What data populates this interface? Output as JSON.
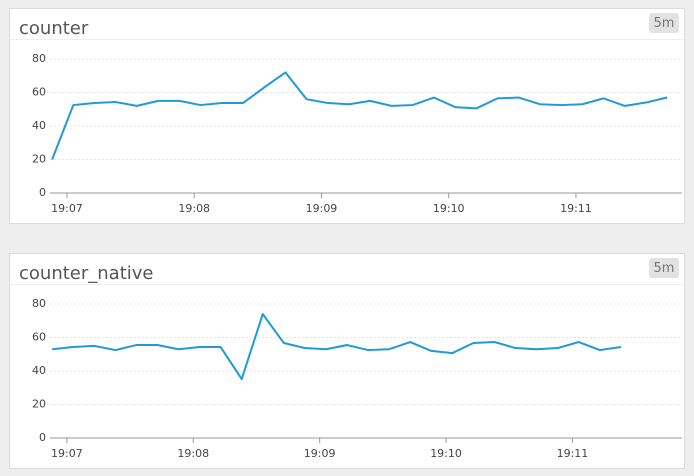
{
  "chart_data": [
    {
      "type": "line",
      "title": "counter",
      "badge": "5m",
      "color": "#1f9ad6",
      "x": [
        413,
        423,
        433,
        443,
        453,
        463,
        473,
        483,
        493,
        503,
        513,
        523,
        533,
        543,
        553,
        563,
        573,
        583,
        593,
        603,
        613,
        623,
        633,
        643,
        653,
        663,
        673,
        683,
        693,
        703
      ],
      "values": [
        20,
        52.5,
        53.7,
        54.3,
        52,
        55,
        55,
        52.5,
        53.7,
        53.7,
        63,
        72,
        56,
        53.7,
        53,
        55,
        52,
        52.5,
        57,
        51.3,
        50.5,
        56.5,
        57,
        53,
        52.5,
        53,
        56.5,
        52,
        54,
        57
      ],
      "xlim": [
        412,
        710
      ],
      "ylim": [
        0,
        80
      ],
      "xticks": [
        {
          "value": 420,
          "label": "19:07"
        },
        {
          "value": 480,
          "label": "19:08"
        },
        {
          "value": 540,
          "label": "19:09"
        },
        {
          "value": 600,
          "label": "19:10"
        },
        {
          "value": 660,
          "label": "19:11"
        }
      ],
      "yticks": [
        0,
        20,
        40,
        60,
        80
      ],
      "grid": true
    },
    {
      "type": "line",
      "title": "counter_native",
      "badge": "5m",
      "color": "#1f9ad6",
      "x": [
        413,
        423,
        433,
        443,
        453,
        463,
        473,
        483,
        493,
        503,
        513,
        523,
        533,
        543,
        553,
        563,
        573,
        583,
        593,
        603,
        613,
        623,
        633,
        643,
        653,
        663,
        673,
        683
      ],
      "values": [
        53,
        54.3,
        55,
        52.5,
        55.5,
        55.5,
        53,
        54.3,
        54.3,
        35.2,
        74,
        56.7,
        53.7,
        53,
        55.5,
        52.5,
        53,
        57.3,
        52,
        50.7,
        56.7,
        57.3,
        53.7,
        53,
        53.7,
        57.3,
        52.5,
        54.3
      ],
      "xlim": [
        412,
        712
      ],
      "ylim": [
        0,
        80
      ],
      "xticks": [
        {
          "value": 420,
          "label": "19:07"
        },
        {
          "value": 480,
          "label": "19:08"
        },
        {
          "value": 540,
          "label": "19:09"
        },
        {
          "value": 600,
          "label": "19:10"
        },
        {
          "value": 660,
          "label": "19:11"
        }
      ],
      "yticks": [
        0,
        20,
        40,
        60,
        80
      ],
      "grid": true
    }
  ]
}
